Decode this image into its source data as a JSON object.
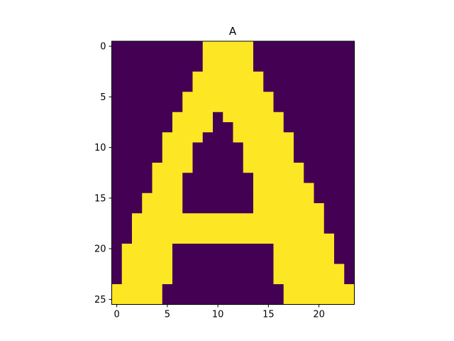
{
  "chart_data": {
    "type": "heatmap",
    "title": "A",
    "xlabel": "",
    "ylabel": "",
    "x_ticks": [
      0,
      5,
      10,
      15,
      20
    ],
    "y_ticks": [
      0,
      5,
      10,
      15,
      20,
      25
    ],
    "x_range": [
      -0.5,
      23.5
    ],
    "y_range": [
      25.5,
      -0.5
    ],
    "grid": false,
    "colormap": "viridis",
    "colors": {
      "low": "#440154",
      "high": "#fde725"
    },
    "rows": [
      "000000000111110000000000",
      "000000000111110000000000",
      "000000000111110000000000",
      "000000001111111000000000",
      "000000001111111000000000",
      "000000011111111100000000",
      "000000011111111100000000",
      "000000111101111110000000",
      "000000111100111110000000",
      "000001111000111111000000",
      "000001110000011111000000",
      "000001110000011111000000",
      "000011110000011111100000",
      "000011100000001111100000",
      "000011100000001111110000",
      "000111100000001111110000",
      "000111100000001111111000",
      "001111111111111111111000",
      "001111111111111111111000",
      "001111111111111111111100",
      "011111000000000011111100",
      "011111000000000011111100",
      "011111000000000011111110",
      "011111000000000011111110",
      "111110000000000001111111",
      "111110000000000001111111"
    ]
  }
}
